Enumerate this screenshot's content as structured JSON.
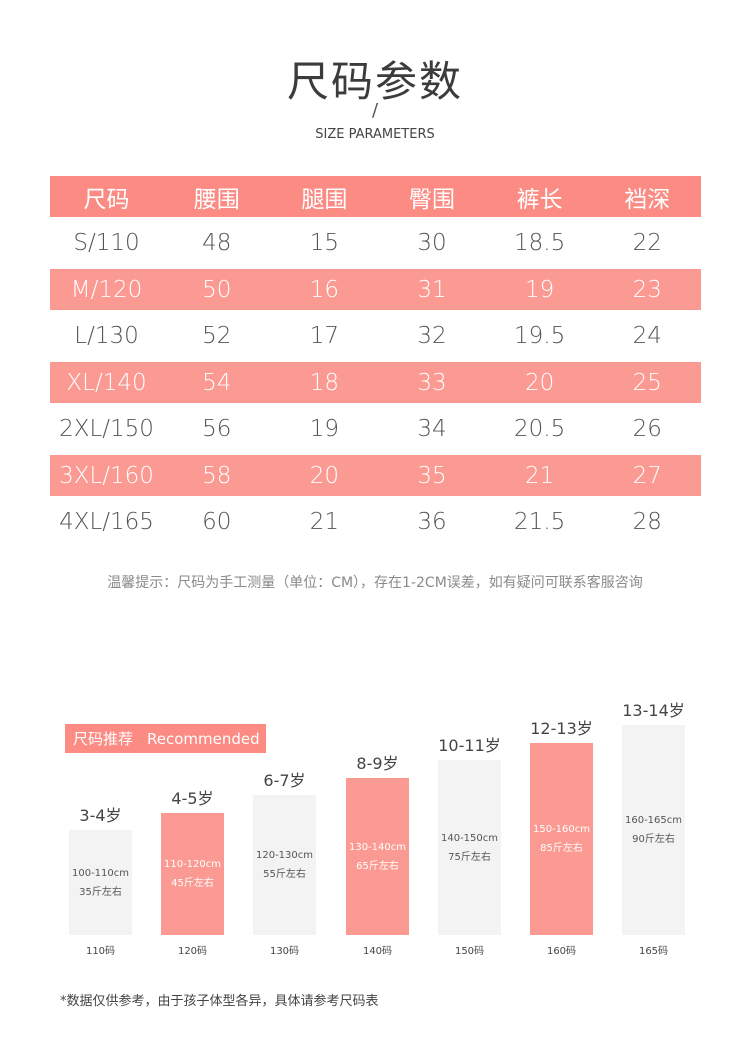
{
  "title": "尺码参数",
  "slash": "/",
  "subtitle": "SIZE PARAMETERS",
  "table": {
    "headers": [
      "尺码",
      "腰围",
      "腿围",
      "臀围",
      "裤长",
      "裆深"
    ],
    "rows": [
      [
        "S/110",
        "48",
        "15",
        "30",
        "18.5",
        "22"
      ],
      [
        "M/120",
        "50",
        "16",
        "31",
        "19",
        "23"
      ],
      [
        "L/130",
        "52",
        "17",
        "32",
        "19.5",
        "24"
      ],
      [
        "XL/140",
        "54",
        "18",
        "33",
        "20",
        "25"
      ],
      [
        "2XL/150",
        "56",
        "19",
        "34",
        "20.5",
        "26"
      ],
      [
        "3XL/160",
        "58",
        "20",
        "35",
        "21",
        "27"
      ],
      [
        "4XL/165",
        "60",
        "21",
        "36",
        "21.5",
        "28"
      ]
    ]
  },
  "note": "温馨提示：尺码为手工测量（单位：CM），存在1-2CM误差，如有疑问可联系客服咨询",
  "recommend": {
    "label_cn": "尺码推荐",
    "label_en": "Recommended"
  },
  "bars": [
    {
      "age": "3-4岁",
      "height_range": "100-110cm",
      "weight": "35斤左右",
      "code": "110码",
      "style": "gray",
      "level": 1
    },
    {
      "age": "4-5岁",
      "height_range": "110-120cm",
      "weight": "45斤左右",
      "code": "120码",
      "style": "pink",
      "level": 2
    },
    {
      "age": "6-7岁",
      "height_range": "120-130cm",
      "weight": "55斤左右",
      "code": "130码",
      "style": "gray",
      "level": 3
    },
    {
      "age": "8-9岁",
      "height_range": "130-140cm",
      "weight": "65斤左右",
      "code": "140码",
      "style": "pink",
      "level": 4
    },
    {
      "age": "10-11岁",
      "height_range": "140-150cm",
      "weight": "75斤左右",
      "code": "150码",
      "style": "gray",
      "level": 5
    },
    {
      "age": "12-13岁",
      "height_range": "150-160cm",
      "weight": "85斤左右",
      "code": "160码",
      "style": "pink",
      "level": 6
    },
    {
      "age": "13-14岁",
      "height_range": "160-165cm",
      "weight": "90斤左右",
      "code": "165码",
      "style": "gray",
      "level": 7
    }
  ],
  "footnote": "*数据仅供参考，由于孩子体型各异，具体请参考尺码表",
  "colors": {
    "accent": "#fb8b83",
    "row_pink": "#fb9a92",
    "bar_gray": "#f3f3f3"
  }
}
